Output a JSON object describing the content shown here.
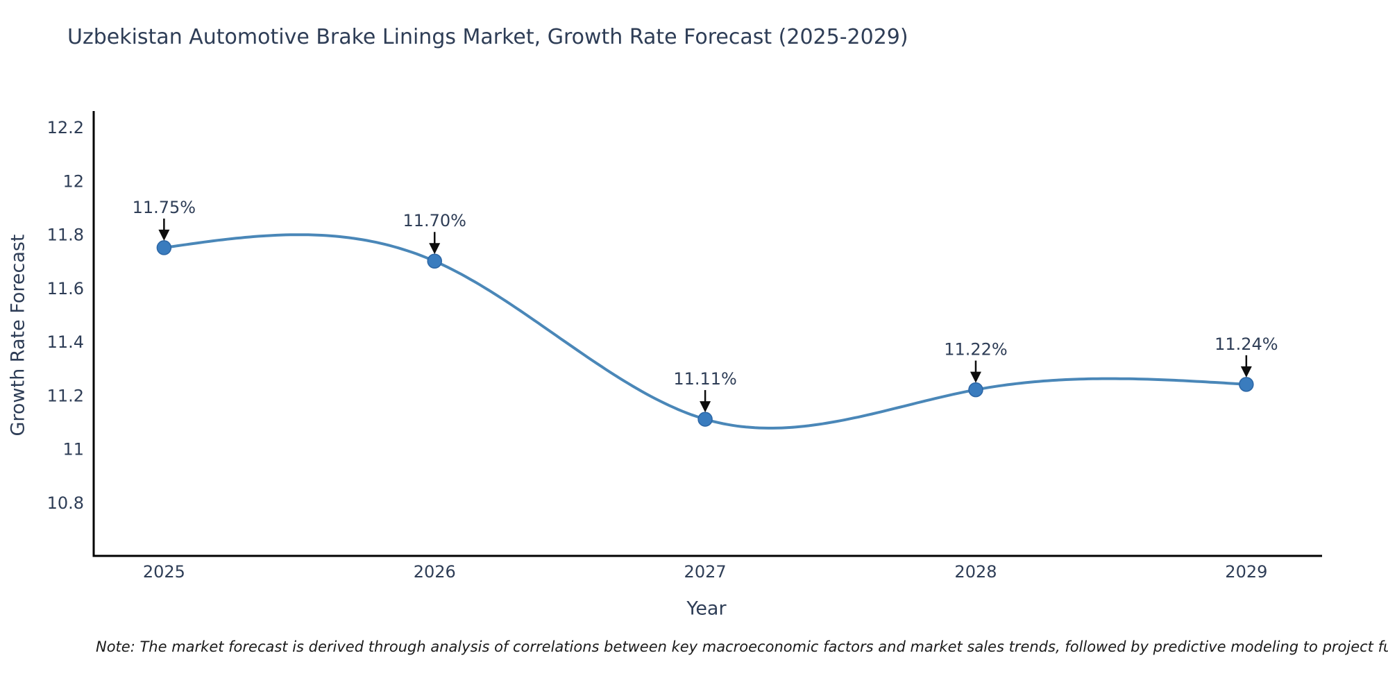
{
  "title": "Uzbekistan Automotive Brake Linings Market, Growth Rate Forecast (2025-2029)",
  "note": "Note: The market forecast is derived through analysis of correlations between key macroeconomic factors and market sales trends, followed by predictive modeling to project future sales.",
  "chart_data": {
    "type": "line",
    "title": "Uzbekistan Automotive Brake Linings Market, Growth Rate Forecast (2025-2029)",
    "xlabel": "Year",
    "ylabel": "Growth Rate Forecast",
    "x": [
      2025,
      2026,
      2027,
      2028,
      2029
    ],
    "x_tick_labels": [
      "2025",
      "2026",
      "2027",
      "2028",
      "2029"
    ],
    "series": [
      {
        "name": "Growth Rate Forecast",
        "values": [
          11.75,
          11.7,
          11.11,
          11.22,
          11.24
        ],
        "point_labels": [
          "11.75%",
          "11.70%",
          "11.11%",
          "11.22%",
          "11.24%"
        ]
      }
    ],
    "y_ticks": [
      12.2,
      12,
      11.8,
      11.6,
      11.4,
      11.2,
      11,
      10.8
    ],
    "y_tick_labels": [
      "12.2",
      "12",
      "11.8",
      "11.6",
      "11.4",
      "11.2",
      "11",
      "10.8"
    ],
    "xlim": [
      2024.74,
      2029.28
    ],
    "ylim": [
      10.6,
      12.26
    ],
    "grid": false,
    "legend": "none",
    "smoothing": "cubic_spline",
    "colors": {
      "line": "#4a87b8",
      "marker_fill": "#3a7cbe",
      "marker_edge": "#2c66a5",
      "axis": "#000000",
      "text": "#2e3d56",
      "arrow": "#0d0d0d",
      "note_text": "#1a1a1a",
      "background": "#ffffff"
    }
  }
}
